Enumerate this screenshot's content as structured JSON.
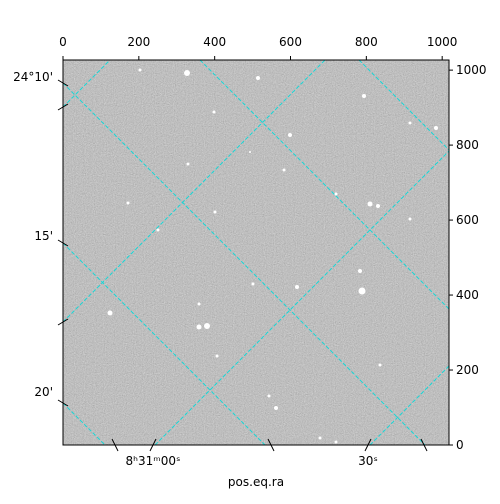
{
  "chart_data": {
    "type": "image",
    "xlabel": "pos.eq.ra",
    "xlim": [
      0,
      1018
    ],
    "ylim": [
      0,
      1027
    ],
    "xticks": [
      0,
      200,
      400,
      600,
      800,
      1000
    ],
    "yticks": [
      0,
      200,
      400,
      600,
      800,
      1000
    ],
    "ra_labels": [
      "8ʰ31ᵐ00ˢ",
      "30ˢ"
    ],
    "dec_labels": [
      "24°10'",
      "15'",
      "20'"
    ]
  }
}
